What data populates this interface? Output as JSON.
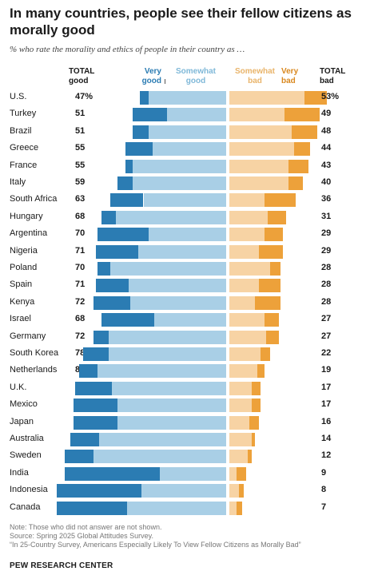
{
  "chart_data": {
    "type": "bar",
    "title": "In many countries, people see their fellow citizens as morally good",
    "subtitle": "% who rate the morality and ethics of people in their country as …",
    "headers": {
      "total_good": [
        "TOTAL",
        "good"
      ],
      "very_good": [
        "Very",
        "good"
      ],
      "somewhat_good": [
        "Somewhat",
        "good"
      ],
      "somewhat_bad": [
        "Somewhat",
        "bad"
      ],
      "very_bad": [
        "Very",
        "bad"
      ],
      "total_bad": [
        "TOTAL",
        "bad"
      ]
    },
    "categories": [
      "U.S.",
      "Turkey",
      "Brazil",
      "Greece",
      "France",
      "Italy",
      "South Africa",
      "Hungary",
      "Argentina",
      "Nigeria",
      "Poland",
      "Spain",
      "Kenya",
      "Israel",
      "Germany",
      "South Korea",
      "Netherlands",
      "U.K.",
      "Mexico",
      "Japan",
      "Australia",
      "Sweden",
      "India",
      "Indonesia",
      "Canada"
    ],
    "total_good_labels": [
      "47%",
      "51",
      "51",
      "55",
      "55",
      "59",
      "63",
      "68",
      "70",
      "71",
      "70",
      "71",
      "72",
      "68",
      "72",
      "78",
      "80",
      "82",
      "83",
      "83",
      "85",
      "88",
      "88",
      "92",
      "92"
    ],
    "total_bad_labels": [
      "53%",
      "49",
      "48",
      "44",
      "43",
      "40",
      "36",
      "31",
      "29",
      "29",
      "28",
      "28",
      "28",
      "27",
      "27",
      "22",
      "19",
      "17",
      "17",
      "16",
      "14",
      "12",
      "9",
      "8",
      "7"
    ],
    "series": [
      {
        "name": "Very good",
        "values": [
          5,
          19,
          9,
          15,
          4,
          8,
          18,
          8,
          28,
          23,
          7,
          18,
          20,
          29,
          8,
          14,
          10,
          20,
          24,
          24,
          16,
          16,
          52,
          46,
          38
        ]
      },
      {
        "name": "Somewhat good",
        "values": [
          42,
          32,
          42,
          40,
          51,
          51,
          45,
          60,
          42,
          48,
          63,
          53,
          52,
          39,
          64,
          64,
          70,
          62,
          59,
          59,
          69,
          72,
          36,
          46,
          54
        ]
      },
      {
        "name": "Somewhat bad",
        "values": [
          41,
          30,
          34,
          35,
          32,
          32,
          19,
          21,
          19,
          16,
          22,
          16,
          14,
          19,
          20,
          17,
          15,
          12,
          12,
          11,
          12,
          10,
          4,
          5,
          4
        ]
      },
      {
        "name": "Very bad",
        "values": [
          12,
          19,
          14,
          9,
          11,
          8,
          17,
          10,
          10,
          13,
          6,
          12,
          14,
          8,
          7,
          5,
          4,
          5,
          5,
          5,
          2,
          2,
          5,
          3,
          3
        ]
      }
    ],
    "xlim": [
      0,
      100
    ],
    "legend": "top",
    "grid": false
  },
  "notes": [
    "Note: Those who did not answer are not shown.",
    "Source: Spring 2025 Global Attitudes Survey.",
    "“In 25-Country Survey, Americans Especially Likely To View Fellow Citizens as Morally Bad”"
  ],
  "brand": "PEW RESEARCH CENTER",
  "colors": {
    "very_good": "#2b7cb3",
    "somewhat_good": "#a9cfe6",
    "somewhat_bad": "#f7d3a4",
    "very_bad": "#eda13a"
  }
}
